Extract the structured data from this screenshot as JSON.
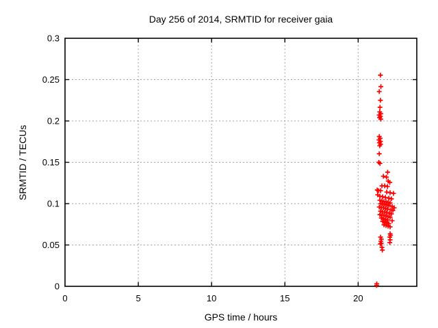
{
  "window": {
    "background": "#ffffff"
  },
  "chart_data": {
    "type": "scatter",
    "title": "Day 256 of 2014, SRMTID for receiver gaia",
    "xlabel": "GPS time / hours",
    "ylabel": "SRMTID / TECUs",
    "xlim": [
      0,
      24
    ],
    "ylim": [
      0,
      0.3
    ],
    "grid": true,
    "legend": "none",
    "marker": "plus",
    "marker_color": "#ff0000",
    "grid_color": "#a0a0a0",
    "border_color": "#000000",
    "xticks": [
      {
        "v": 0,
        "label": "0"
      },
      {
        "v": 5,
        "label": "5"
      },
      {
        "v": 10,
        "label": "10"
      },
      {
        "v": 15,
        "label": "15"
      },
      {
        "v": 20,
        "label": "20"
      }
    ],
    "yticks": [
      {
        "v": 0,
        "label": "0"
      },
      {
        "v": 0.05,
        "label": "0.05"
      },
      {
        "v": 0.1,
        "label": "0.1"
      },
      {
        "v": 0.15,
        "label": "0.15"
      },
      {
        "v": 0.2,
        "label": "0.2"
      },
      {
        "v": 0.25,
        "label": "0.25"
      },
      {
        "v": 0.3,
        "label": "0.3"
      }
    ],
    "series": [
      {
        "name": "SRMTID",
        "points": [
          [
            21.52,
            0.2554
          ],
          [
            21.55,
            0.2415
          ],
          [
            21.44,
            0.2355
          ],
          [
            21.52,
            0.225
          ],
          [
            21.49,
            0.2165
          ],
          [
            21.47,
            0.211
          ],
          [
            21.55,
            0.2088
          ],
          [
            21.43,
            0.2072
          ],
          [
            21.52,
            0.2055
          ],
          [
            21.46,
            0.204
          ],
          [
            21.55,
            0.2022
          ],
          [
            21.44,
            0.1812
          ],
          [
            21.5,
            0.179
          ],
          [
            21.42,
            0.177
          ],
          [
            21.52,
            0.1752
          ],
          [
            21.45,
            0.1736
          ],
          [
            21.53,
            0.1718
          ],
          [
            21.47,
            0.17
          ],
          [
            21.44,
            0.1603
          ],
          [
            21.41,
            0.15
          ],
          [
            21.49,
            0.1486
          ],
          [
            22.01,
            0.138
          ],
          [
            21.72,
            0.1331
          ],
          [
            21.93,
            0.132
          ],
          [
            22.05,
            0.1273
          ],
          [
            22.16,
            0.1256
          ],
          [
            21.62,
            0.1215
          ],
          [
            21.81,
            0.1215
          ],
          [
            22.0,
            0.1207
          ],
          [
            21.3,
            0.1165
          ],
          [
            21.39,
            0.1157
          ],
          [
            21.53,
            0.1157
          ],
          [
            21.95,
            0.114
          ],
          [
            22.18,
            0.1132
          ],
          [
            22.41,
            0.1124
          ],
          [
            21.33,
            0.1107
          ],
          [
            21.48,
            0.109
          ],
          [
            21.67,
            0.1083
          ],
          [
            21.86,
            0.1075
          ],
          [
            22.09,
            0.1066
          ],
          [
            22.27,
            0.1058
          ],
          [
            21.48,
            0.1041
          ],
          [
            21.62,
            0.1033
          ],
          [
            21.76,
            0.1025
          ],
          [
            21.9,
            0.1025
          ],
          [
            22.04,
            0.1017
          ],
          [
            22.18,
            0.1008
          ],
          [
            21.53,
            0.1
          ],
          [
            21.67,
            0.0992
          ],
          [
            21.81,
            0.0992
          ],
          [
            21.95,
            0.0983
          ],
          [
            22.09,
            0.0975
          ],
          [
            22.32,
            0.0967
          ],
          [
            21.44,
            0.0959
          ],
          [
            21.58,
            0.095
          ],
          [
            21.72,
            0.095
          ],
          [
            21.86,
            0.0942
          ],
          [
            22.0,
            0.0934
          ],
          [
            22.23,
            0.0926
          ],
          [
            22.46,
            0.095
          ],
          [
            22.37,
            0.0917
          ],
          [
            21.53,
            0.0909
          ],
          [
            21.67,
            0.09
          ],
          [
            21.81,
            0.09
          ],
          [
            21.95,
            0.0892
          ],
          [
            22.13,
            0.0884
          ],
          [
            22.27,
            0.0876
          ],
          [
            21.48,
            0.0867
          ],
          [
            21.62,
            0.0859
          ],
          [
            21.76,
            0.0859
          ],
          [
            21.9,
            0.0851
          ],
          [
            22.04,
            0.0843
          ],
          [
            22.18,
            0.0835
          ],
          [
            21.58,
            0.0826
          ],
          [
            21.72,
            0.0818
          ],
          [
            21.86,
            0.081
          ],
          [
            22.0,
            0.0802
          ],
          [
            22.32,
            0.0793
          ],
          [
            21.67,
            0.0785
          ],
          [
            21.81,
            0.0777
          ],
          [
            21.95,
            0.0769
          ],
          [
            22.09,
            0.076
          ],
          [
            21.76,
            0.0744
          ],
          [
            21.9,
            0.0736
          ],
          [
            22.04,
            0.0727
          ],
          [
            22.18,
            0.0719
          ],
          [
            22.18,
            0.0636
          ],
          [
            22.21,
            0.0618
          ],
          [
            21.53,
            0.0595
          ],
          [
            21.58,
            0.057
          ],
          [
            21.55,
            0.0545
          ],
          [
            21.58,
            0.0521
          ],
          [
            21.51,
            0.0512
          ],
          [
            22.16,
            0.0595
          ],
          [
            22.18,
            0.0562
          ],
          [
            22.16,
            0.0529
          ],
          [
            21.62,
            0.0471
          ],
          [
            21.65,
            0.0438
          ],
          [
            21.26,
            0.001
          ],
          [
            21.27,
            0.003
          ]
        ]
      }
    ]
  }
}
